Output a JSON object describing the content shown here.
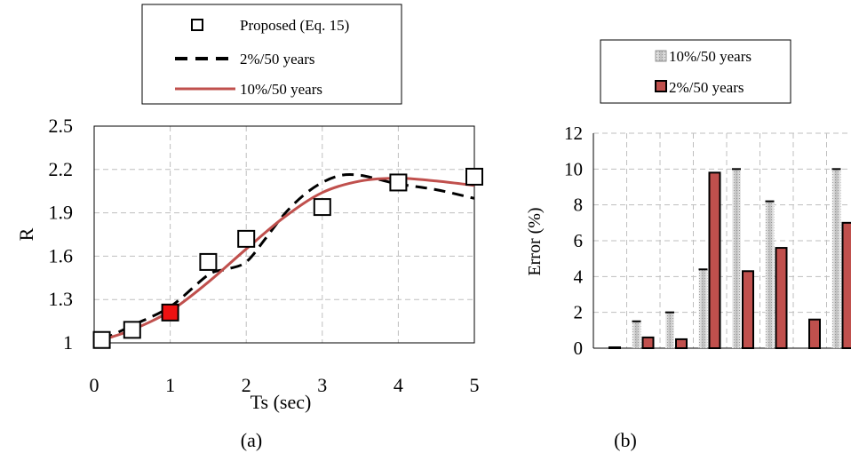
{
  "chart_data": [
    {
      "type": "scatter+line",
      "panel_label": "(a)",
      "xlabel": "Ts (sec)",
      "ylabel": "R",
      "xlim": [
        0,
        5
      ],
      "ylim": [
        1,
        2.5
      ],
      "xticks": [
        0,
        1,
        2,
        3,
        4,
        5
      ],
      "yticks": [
        1,
        1.3,
        1.6,
        1.9,
        2.2,
        2.5
      ],
      "ytick_labels": [
        "1",
        "1.3",
        "1.6",
        "1.9",
        "2.2",
        "2.5"
      ],
      "grid": true,
      "legend_position": "top-center",
      "series": [
        {
          "name": "Proposed (Eq. 15)",
          "kind": "markers",
          "marker": "open-square",
          "color": "#000000",
          "x": [
            0.1,
            0.5,
            1.0,
            1.5,
            2.0,
            3.0,
            4.0,
            5.0
          ],
          "y": [
            1.02,
            1.09,
            1.21,
            1.56,
            1.72,
            1.94,
            2.11,
            2.15
          ],
          "highlight_index": 2,
          "highlight_color": "#ee1111"
        },
        {
          "name": "2%/50 years",
          "kind": "line",
          "style": "dashed",
          "color": "#000000",
          "x": [
            0.1,
            0.5,
            1.0,
            1.5,
            1.75,
            2.0,
            2.25,
            2.5,
            2.75,
            3.0,
            3.25,
            3.5,
            3.75,
            4.0,
            4.5,
            5.0
          ],
          "y": [
            1.02,
            1.12,
            1.25,
            1.47,
            1.51,
            1.56,
            1.72,
            1.89,
            2.02,
            2.11,
            2.16,
            2.16,
            2.13,
            2.1,
            2.06,
            2.0
          ]
        },
        {
          "name": "10%/50 years",
          "kind": "line",
          "style": "solid",
          "color": "#c0504d",
          "x": [
            0.1,
            0.5,
            1.0,
            1.5,
            2.0,
            2.5,
            3.0,
            3.5,
            4.0,
            4.5,
            5.0
          ],
          "y": [
            1.02,
            1.09,
            1.22,
            1.42,
            1.65,
            1.87,
            2.04,
            2.12,
            2.14,
            2.12,
            2.09
          ]
        }
      ]
    },
    {
      "type": "bar",
      "panel_label": "(b)",
      "ylabel": "Error (%)",
      "ylim": [
        0,
        12
      ],
      "yticks": [
        0,
        2,
        4,
        6,
        8,
        10,
        12
      ],
      "grid": true,
      "legend_position": "top",
      "series": [
        {
          "name": "10%/50 years",
          "fill": "gray-gradient-dotted",
          "color": "#c8c8c8",
          "values": [
            0.0,
            1.5,
            2.0,
            4.4,
            10.0,
            8.2,
            0.0,
            10.0
          ]
        },
        {
          "name": "2%/50 years",
          "fill": "solid",
          "color": "#c0504d",
          "values": [
            0.05,
            0.6,
            0.5,
            9.8,
            4.3,
            5.6,
            1.6,
            7.0
          ]
        }
      ]
    }
  ]
}
